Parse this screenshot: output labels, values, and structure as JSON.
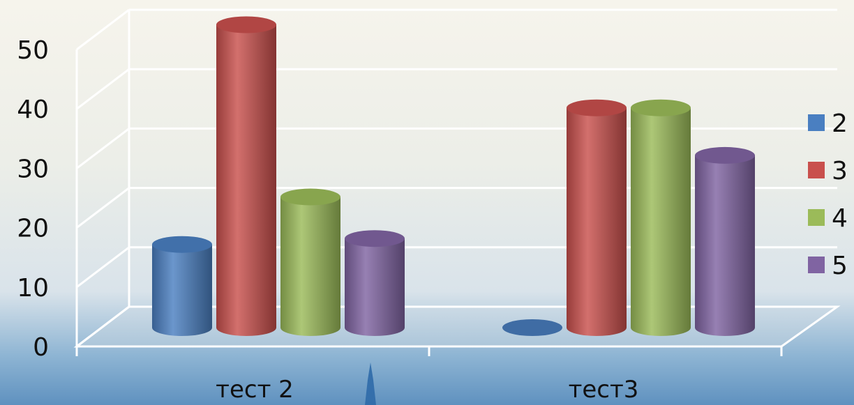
{
  "chart_data": {
    "type": "bar",
    "categories": [
      "тест 2",
      "тест3"
    ],
    "series": [
      {
        "name": "2",
        "color": "#4a7fc1",
        "values": [
          14,
          0
        ]
      },
      {
        "name": "3",
        "color": "#c9504d",
        "values": [
          51,
          37
        ]
      },
      {
        "name": "4",
        "color": "#9bbb59",
        "values": [
          22,
          37
        ]
      },
      {
        "name": "5",
        "color": "#8064a2",
        "values": [
          15,
          29
        ]
      }
    ],
    "ylim": [
      0,
      50
    ],
    "yticks": [
      "0",
      "10",
      "20",
      "30",
      "40",
      "50"
    ],
    "grid": true,
    "legend_position": "right",
    "style": "3d-cylinder"
  }
}
